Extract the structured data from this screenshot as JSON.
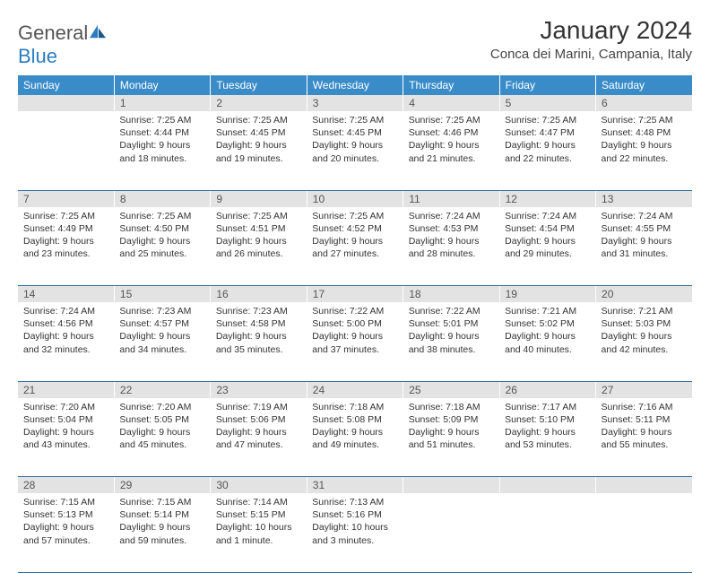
{
  "logo": {
    "text_general": "General",
    "text_blue": "Blue"
  },
  "title": "January 2024",
  "location": "Conca dei Marini, Campania, Italy",
  "day_headers": [
    "Sunday",
    "Monday",
    "Tuesday",
    "Wednesday",
    "Thursday",
    "Friday",
    "Saturday"
  ],
  "colors": {
    "header_bg": "#3a8cc9",
    "header_text": "#ffffff",
    "daynum_bg": "#e3e3e3",
    "row_border": "#2d6fa0",
    "logo_blue": "#2d7cc0"
  },
  "weeks": [
    [
      null,
      {
        "n": "1",
        "sunrise": "7:25 AM",
        "sunset": "4:44 PM",
        "daylight": "9 hours and 18 minutes."
      },
      {
        "n": "2",
        "sunrise": "7:25 AM",
        "sunset": "4:45 PM",
        "daylight": "9 hours and 19 minutes."
      },
      {
        "n": "3",
        "sunrise": "7:25 AM",
        "sunset": "4:45 PM",
        "daylight": "9 hours and 20 minutes."
      },
      {
        "n": "4",
        "sunrise": "7:25 AM",
        "sunset": "4:46 PM",
        "daylight": "9 hours and 21 minutes."
      },
      {
        "n": "5",
        "sunrise": "7:25 AM",
        "sunset": "4:47 PM",
        "daylight": "9 hours and 22 minutes."
      },
      {
        "n": "6",
        "sunrise": "7:25 AM",
        "sunset": "4:48 PM",
        "daylight": "9 hours and 22 minutes."
      }
    ],
    [
      {
        "n": "7",
        "sunrise": "7:25 AM",
        "sunset": "4:49 PM",
        "daylight": "9 hours and 23 minutes."
      },
      {
        "n": "8",
        "sunrise": "7:25 AM",
        "sunset": "4:50 PM",
        "daylight": "9 hours and 25 minutes."
      },
      {
        "n": "9",
        "sunrise": "7:25 AM",
        "sunset": "4:51 PM",
        "daylight": "9 hours and 26 minutes."
      },
      {
        "n": "10",
        "sunrise": "7:25 AM",
        "sunset": "4:52 PM",
        "daylight": "9 hours and 27 minutes."
      },
      {
        "n": "11",
        "sunrise": "7:24 AM",
        "sunset": "4:53 PM",
        "daylight": "9 hours and 28 minutes."
      },
      {
        "n": "12",
        "sunrise": "7:24 AM",
        "sunset": "4:54 PM",
        "daylight": "9 hours and 29 minutes."
      },
      {
        "n": "13",
        "sunrise": "7:24 AM",
        "sunset": "4:55 PM",
        "daylight": "9 hours and 31 minutes."
      }
    ],
    [
      {
        "n": "14",
        "sunrise": "7:24 AM",
        "sunset": "4:56 PM",
        "daylight": "9 hours and 32 minutes."
      },
      {
        "n": "15",
        "sunrise": "7:23 AM",
        "sunset": "4:57 PM",
        "daylight": "9 hours and 34 minutes."
      },
      {
        "n": "16",
        "sunrise": "7:23 AM",
        "sunset": "4:58 PM",
        "daylight": "9 hours and 35 minutes."
      },
      {
        "n": "17",
        "sunrise": "7:22 AM",
        "sunset": "5:00 PM",
        "daylight": "9 hours and 37 minutes."
      },
      {
        "n": "18",
        "sunrise": "7:22 AM",
        "sunset": "5:01 PM",
        "daylight": "9 hours and 38 minutes."
      },
      {
        "n": "19",
        "sunrise": "7:21 AM",
        "sunset": "5:02 PM",
        "daylight": "9 hours and 40 minutes."
      },
      {
        "n": "20",
        "sunrise": "7:21 AM",
        "sunset": "5:03 PM",
        "daylight": "9 hours and 42 minutes."
      }
    ],
    [
      {
        "n": "21",
        "sunrise": "7:20 AM",
        "sunset": "5:04 PM",
        "daylight": "9 hours and 43 minutes."
      },
      {
        "n": "22",
        "sunrise": "7:20 AM",
        "sunset": "5:05 PM",
        "daylight": "9 hours and 45 minutes."
      },
      {
        "n": "23",
        "sunrise": "7:19 AM",
        "sunset": "5:06 PM",
        "daylight": "9 hours and 47 minutes."
      },
      {
        "n": "24",
        "sunrise": "7:18 AM",
        "sunset": "5:08 PM",
        "daylight": "9 hours and 49 minutes."
      },
      {
        "n": "25",
        "sunrise": "7:18 AM",
        "sunset": "5:09 PM",
        "daylight": "9 hours and 51 minutes."
      },
      {
        "n": "26",
        "sunrise": "7:17 AM",
        "sunset": "5:10 PM",
        "daylight": "9 hours and 53 minutes."
      },
      {
        "n": "27",
        "sunrise": "7:16 AM",
        "sunset": "5:11 PM",
        "daylight": "9 hours and 55 minutes."
      }
    ],
    [
      {
        "n": "28",
        "sunrise": "7:15 AM",
        "sunset": "5:13 PM",
        "daylight": "9 hours and 57 minutes."
      },
      {
        "n": "29",
        "sunrise": "7:15 AM",
        "sunset": "5:14 PM",
        "daylight": "9 hours and 59 minutes."
      },
      {
        "n": "30",
        "sunrise": "7:14 AM",
        "sunset": "5:15 PM",
        "daylight": "10 hours and 1 minute."
      },
      {
        "n": "31",
        "sunrise": "7:13 AM",
        "sunset": "5:16 PM",
        "daylight": "10 hours and 3 minutes."
      },
      null,
      null,
      null
    ]
  ],
  "labels": {
    "sunrise": "Sunrise:",
    "sunset": "Sunset:",
    "daylight": "Daylight:"
  }
}
